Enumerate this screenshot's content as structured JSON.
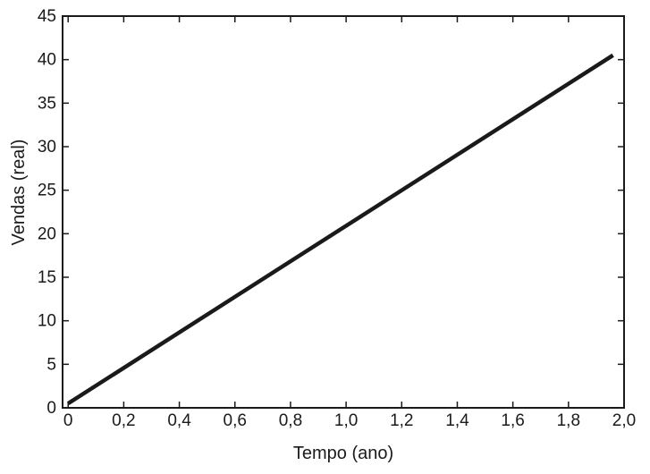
{
  "chart_data": {
    "type": "line",
    "xlabel": "Tempo (ano)",
    "ylabel": "Vendas (real)",
    "xlim": [
      -0.02,
      2.0
    ],
    "ylim": [
      0,
      45
    ],
    "x_ticks": [
      "0",
      "0,2",
      "0,4",
      "0,6",
      "0,8",
      "1,0",
      "1,2",
      "1,4",
      "1,6",
      "1,8",
      "2,0"
    ],
    "y_ticks": [
      "0",
      "5",
      "10",
      "15",
      "20",
      "25",
      "30",
      "35",
      "40",
      "45"
    ],
    "series": [
      {
        "x": [
          0.0,
          1.96
        ],
        "y": [
          0.5,
          40.5
        ],
        "color": "#1a1a1a"
      }
    ],
    "grid": false,
    "legend": "none"
  }
}
